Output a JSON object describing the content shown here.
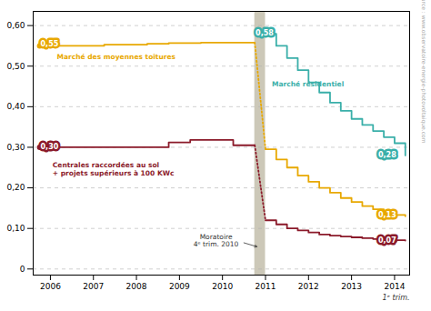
{
  "chart_data": {
    "type": "line",
    "xlim": [
      2005.6,
      2014.35
    ],
    "xticks": [
      2006,
      2007,
      2008,
      2009,
      2010,
      2011,
      2012,
      2013,
      2014
    ],
    "ylim": [
      -0.015,
      0.635
    ],
    "yticks": [
      0,
      {
        "value": 0.1,
        "label": "0,10"
      },
      {
        "value": 0.2,
        "label": "0,20"
      },
      {
        "value": 0.3,
        "label": "0,30"
      },
      {
        "value": 0.4,
        "label": "0,40"
      },
      {
        "value": 0.5,
        "label": "0,50"
      },
      {
        "value": 0.6,
        "label": "0,60"
      }
    ],
    "grid": true,
    "xlabel": "1ᵉ trim.",
    "source": "Source : www.observatoire-energie-photovoltaique.com",
    "spans": [
      {
        "x0": 2010.75,
        "x1": 2011.0,
        "color": "#ccc8b8"
      }
    ],
    "series": [
      {
        "type": "step",
        "color": "#E8A800",
        "line_style": "solid",
        "x": [
          2005.75,
          2006.0,
          2006.25,
          2006.5,
          2006.75,
          2007.0,
          2007.25,
          2007.5,
          2007.75,
          2008.0,
          2008.25,
          2008.5,
          2008.75,
          2009.0,
          2009.25,
          2009.5,
          2009.75,
          2010.0,
          2010.25,
          2010.5,
          2010.75
        ],
        "values": [
          0.55,
          0.55,
          0.55,
          0.55,
          0.55,
          0.55,
          0.553,
          0.553,
          0.553,
          0.553,
          0.555,
          0.555,
          0.557,
          0.557,
          0.557,
          0.558,
          0.558,
          0.558,
          0.558,
          0.558,
          0.558
        ]
      },
      {
        "type": "line",
        "color": "#E8A800",
        "line_style": "dotted",
        "x": [
          2010.75,
          2011.0
        ],
        "values": [
          0.558,
          0.295
        ]
      },
      {
        "type": "step",
        "color": "#E8A800",
        "line_style": "solid",
        "x": [
          2011.0,
          2011.25,
          2011.5,
          2011.75,
          2012.0,
          2012.25,
          2012.5,
          2012.75,
          2013.0,
          2013.25,
          2013.5,
          2013.75,
          2014.0,
          2014.25
        ],
        "values": [
          0.295,
          0.27,
          0.25,
          0.23,
          0.215,
          0.2,
          0.188,
          0.175,
          0.165,
          0.155,
          0.147,
          0.14,
          0.133,
          0.13
        ]
      },
      {
        "type": "step",
        "color": "#3AAFA9",
        "line_style": "solid",
        "x": [
          2011.0,
          2011.25,
          2011.5,
          2011.75,
          2012.0,
          2012.25,
          2012.5,
          2012.75,
          2013.0,
          2013.25,
          2013.5,
          2013.75,
          2014.0,
          2014.25
        ],
        "values": [
          0.58,
          0.55,
          0.52,
          0.49,
          0.46,
          0.435,
          0.41,
          0.39,
          0.37,
          0.355,
          0.34,
          0.325,
          0.31,
          0.28
        ]
      },
      {
        "type": "step",
        "color": "#8B1A2A",
        "line_style": "solid",
        "x": [
          2005.75,
          2006.0,
          2006.25,
          2006.5,
          2006.75,
          2007.0,
          2007.25,
          2007.5,
          2007.75,
          2008.0,
          2008.25,
          2008.5,
          2008.75,
          2009.0,
          2009.25,
          2009.5,
          2009.75,
          2010.0,
          2010.25,
          2010.5,
          2010.75
        ],
        "values": [
          0.3,
          0.3,
          0.3,
          0.3,
          0.3,
          0.3,
          0.3,
          0.3,
          0.3,
          0.3,
          0.3,
          0.3,
          0.312,
          0.312,
          0.318,
          0.318,
          0.318,
          0.318,
          0.305,
          0.305,
          0.305
        ]
      },
      {
        "type": "line",
        "color": "#8B1A2A",
        "line_style": "dotted",
        "x": [
          2010.75,
          2011.0
        ],
        "values": [
          0.305,
          0.12
        ]
      },
      {
        "type": "step",
        "color": "#8B1A2A",
        "line_style": "solid",
        "x": [
          2011.0,
          2011.25,
          2011.5,
          2011.75,
          2012.0,
          2012.25,
          2012.5,
          2012.75,
          2013.0,
          2013.25,
          2013.5,
          2013.75,
          2014.0,
          2014.25
        ],
        "values": [
          0.12,
          0.11,
          0.1,
          0.095,
          0.09,
          0.085,
          0.082,
          0.08,
          0.078,
          0.076,
          0.074,
          0.072,
          0.071,
          0.07
        ]
      },
      {
        "type": "scatter",
        "marker": "circle",
        "color": "#E8A800",
        "x": [
          2005.75
        ],
        "values": [
          0.55
        ]
      },
      {
        "type": "scatter",
        "marker": "circle",
        "color": "#8B1A2A",
        "x": [
          2005.75
        ],
        "values": [
          0.3
        ]
      },
      {
        "type": "scatter",
        "marker": "circle",
        "color": "#3AAFA9",
        "x": [
          2011.0
        ],
        "values": [
          0.58
        ]
      },
      {
        "type": "scatter",
        "marker": "circle",
        "color": "#E8A800",
        "x": [
          2014.0
        ],
        "values": [
          0.133
        ]
      },
      {
        "type": "scatter",
        "marker": "circle",
        "color": "#3AAFA9",
        "x": [
          2014.0
        ],
        "values": [
          0.28
        ]
      },
      {
        "type": "scatter",
        "marker": "circle",
        "color": "#8B1A2A",
        "x": [
          2014.0
        ],
        "values": [
          0.07
        ]
      }
    ],
    "annotations": [
      {
        "kind": "badge",
        "text": "0,55",
        "x": 2005.77,
        "y": 0.555,
        "color": "#E8A800"
      },
      {
        "kind": "badge",
        "text": "0,30",
        "x": 2005.77,
        "y": 0.302,
        "color": "#8B1A2A"
      },
      {
        "kind": "badge",
        "text": "0,58",
        "x": 2010.77,
        "y": 0.582,
        "color": "#3AAFA9"
      },
      {
        "kind": "badge",
        "text": "0,28",
        "x": 2013.62,
        "y": 0.28,
        "color": "#3AAFA9"
      },
      {
        "kind": "badge",
        "text": "0,13",
        "x": 2013.62,
        "y": 0.133,
        "color": "#E8A800"
      },
      {
        "kind": "badge",
        "text": "0,07",
        "x": 2013.62,
        "y": 0.07,
        "color": "#8B1A2A"
      },
      {
        "kind": "label",
        "text": "Marché des moyennes toitures",
        "x": 2006.15,
        "y": 0.518,
        "color": "#E8A800"
      },
      {
        "kind": "label",
        "text": "Marché résidentiel",
        "x": 2011.15,
        "y": 0.45,
        "color": "#3AAFA9"
      },
      {
        "kind": "label",
        "text": "Centrales raccordées au sol",
        "x": 2006.05,
        "y": 0.25,
        "color": "#8B1A2A"
      },
      {
        "kind": "label",
        "text": "+ projets supérieurs à 100 KWc",
        "x": 2006.05,
        "y": 0.23,
        "color": "#8B1A2A"
      },
      {
        "kind": "arrow",
        "text": "Moratoire\n4ᵉ trim. 2010",
        "x": 2009.85,
        "y": 0.085,
        "arrow_x": 2010.8,
        "arrow_y": 0.055,
        "color": "#333333"
      }
    ]
  }
}
